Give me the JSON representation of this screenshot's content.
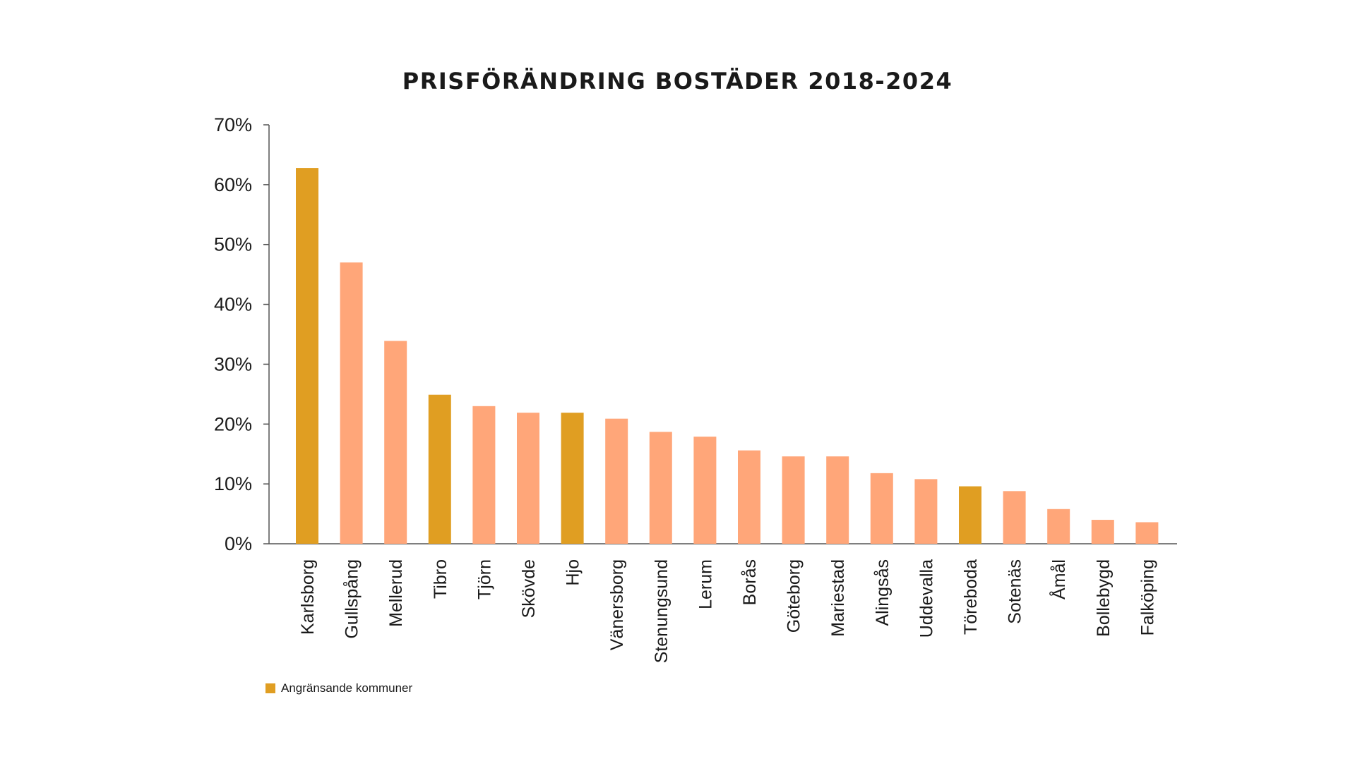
{
  "chart_data": {
    "type": "bar",
    "title": "PRISFÖRÄNDRING BOSTÄDER 2018-2024",
    "xlabel": "",
    "ylabel": "",
    "ylim": [
      0,
      70
    ],
    "yticks": [
      0,
      10,
      20,
      30,
      40,
      50,
      60,
      70
    ],
    "ytick_labels": [
      "0%",
      "10%",
      "20%",
      "30%",
      "40%",
      "50%",
      "60%",
      "70%"
    ],
    "grid": false,
    "categories": [
      "Karlsborg",
      "Gullspång",
      "Mellerud",
      "Tibro",
      "Tjörn",
      "Skövde",
      "Hjo",
      "Vänersborg",
      "Stenungsund",
      "Lerum",
      "Borås",
      "Göteborg",
      "Mariestad",
      "Alingsås",
      "Uddevalla",
      "Töreboda",
      "Sotenäs",
      "Åmål",
      "Bollebygd",
      "Falköping"
    ],
    "values": [
      62.8,
      47.0,
      33.9,
      24.9,
      23.0,
      21.9,
      21.9,
      20.9,
      18.7,
      17.9,
      15.6,
      14.6,
      14.6,
      11.8,
      10.8,
      9.6,
      8.8,
      5.8,
      4.0,
      3.6
    ],
    "highlighted": [
      true,
      false,
      false,
      true,
      false,
      false,
      true,
      false,
      false,
      false,
      false,
      false,
      false,
      false,
      false,
      true,
      false,
      false,
      false,
      false
    ],
    "colors": {
      "highlight": "#E09E22",
      "default": "#FFA679",
      "axis": "#555555"
    },
    "legend": {
      "position": "bottom-left",
      "label": "Angränsande kommuner"
    }
  }
}
